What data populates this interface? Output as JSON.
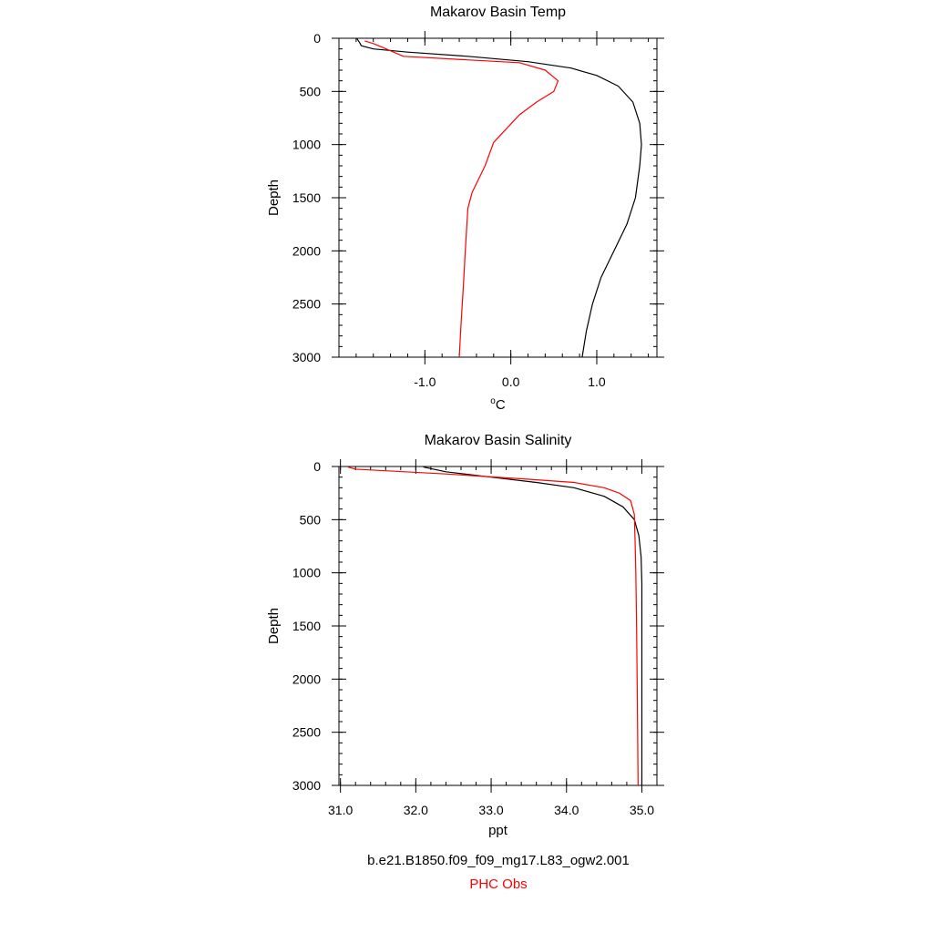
{
  "colors": {
    "model": "#000000",
    "obs": "#ff0000",
    "axis": "#000000"
  },
  "legend": {
    "model_label": "b.e21.B1850.f09_f09_mg17.L83_ogw2.001",
    "obs_label": "PHC Obs"
  },
  "chart_data": [
    {
      "type": "line",
      "title": "Makarov Basin Temp",
      "xlabel": "oC",
      "xlabel_base": "C",
      "xlabel_superscript": "o",
      "ylabel": "Depth",
      "xlim": [
        -2.0,
        1.7
      ],
      "ylim": [
        3000,
        0
      ],
      "y_reversed": true,
      "x_major_ticks": [
        -1.0,
        0.0,
        1.0
      ],
      "x_tick_labels": [
        "-1.0",
        "0.0",
        "1.0"
      ],
      "x_minor_step": 0.2,
      "y_major_ticks": [
        0,
        500,
        1000,
        1500,
        2000,
        2500,
        3000
      ],
      "y_tick_labels": [
        "0",
        "500",
        "1000",
        "1500",
        "2000",
        "2500",
        "3000"
      ],
      "y_minor_step": 100,
      "grid": false,
      "series": [
        {
          "key": "model",
          "x": [
            -1.79,
            -1.76,
            -1.74,
            -1.6,
            -1.2,
            -0.5,
            0.2,
            0.7,
            1.0,
            1.25,
            1.42,
            1.5,
            1.52,
            1.5,
            1.45,
            1.35,
            1.2,
            1.05,
            0.95,
            0.88,
            0.83
          ],
          "y": [
            5,
            40,
            70,
            100,
            130,
            170,
            220,
            280,
            350,
            450,
            600,
            800,
            1000,
            1200,
            1500,
            1750,
            2000,
            2250,
            2500,
            2750,
            3000
          ]
        },
        {
          "key": "obs",
          "x": [
            -1.7,
            -1.6,
            -1.45,
            -1.25,
            0.1,
            0.4,
            0.55,
            0.5,
            0.3,
            0.1,
            -0.2,
            -0.3,
            -0.45,
            -0.5,
            -0.53,
            -0.55,
            -0.58,
            -0.6
          ],
          "y": [
            25,
            50,
            100,
            170,
            230,
            300,
            400,
            500,
            600,
            720,
            980,
            1200,
            1450,
            1600,
            2000,
            2300,
            2700,
            3000
          ]
        }
      ]
    },
    {
      "type": "line",
      "title": "Makarov Basin Salinity",
      "xlabel": "ppt",
      "ylabel": "Depth",
      "xlim": [
        30.98,
        35.2
      ],
      "ylim": [
        3000,
        0
      ],
      "y_reversed": true,
      "x_major_ticks": [
        31.0,
        32.0,
        33.0,
        34.0,
        35.0
      ],
      "x_tick_labels": [
        "31.0",
        "32.0",
        "33.0",
        "34.0",
        "35.0"
      ],
      "x_minor_step": 0.2,
      "y_major_ticks": [
        0,
        500,
        1000,
        1500,
        2000,
        2500,
        3000
      ],
      "y_tick_labels": [
        "0",
        "500",
        "1000",
        "1500",
        "2000",
        "2500",
        "3000"
      ],
      "y_minor_step": 100,
      "grid": false,
      "series": [
        {
          "key": "model",
          "x": [
            32.1,
            32.4,
            33.0,
            33.6,
            34.1,
            34.5,
            34.75,
            34.9,
            34.96,
            34.99,
            35.0,
            35.0,
            35.0,
            35.0
          ],
          "y": [
            5,
            50,
            100,
            150,
            200,
            280,
            380,
            500,
            650,
            850,
            1100,
            1500,
            2200,
            3000
          ]
        },
        {
          "key": "obs",
          "x": [
            31.1,
            31.2,
            32.4,
            33.5,
            34.1,
            34.5,
            34.7,
            34.85,
            34.9,
            34.91,
            34.92,
            34.93,
            34.94,
            34.95
          ],
          "y": [
            5,
            25,
            70,
            120,
            150,
            200,
            250,
            320,
            450,
            700,
            1000,
            1500,
            2200,
            3000
          ]
        }
      ]
    }
  ]
}
